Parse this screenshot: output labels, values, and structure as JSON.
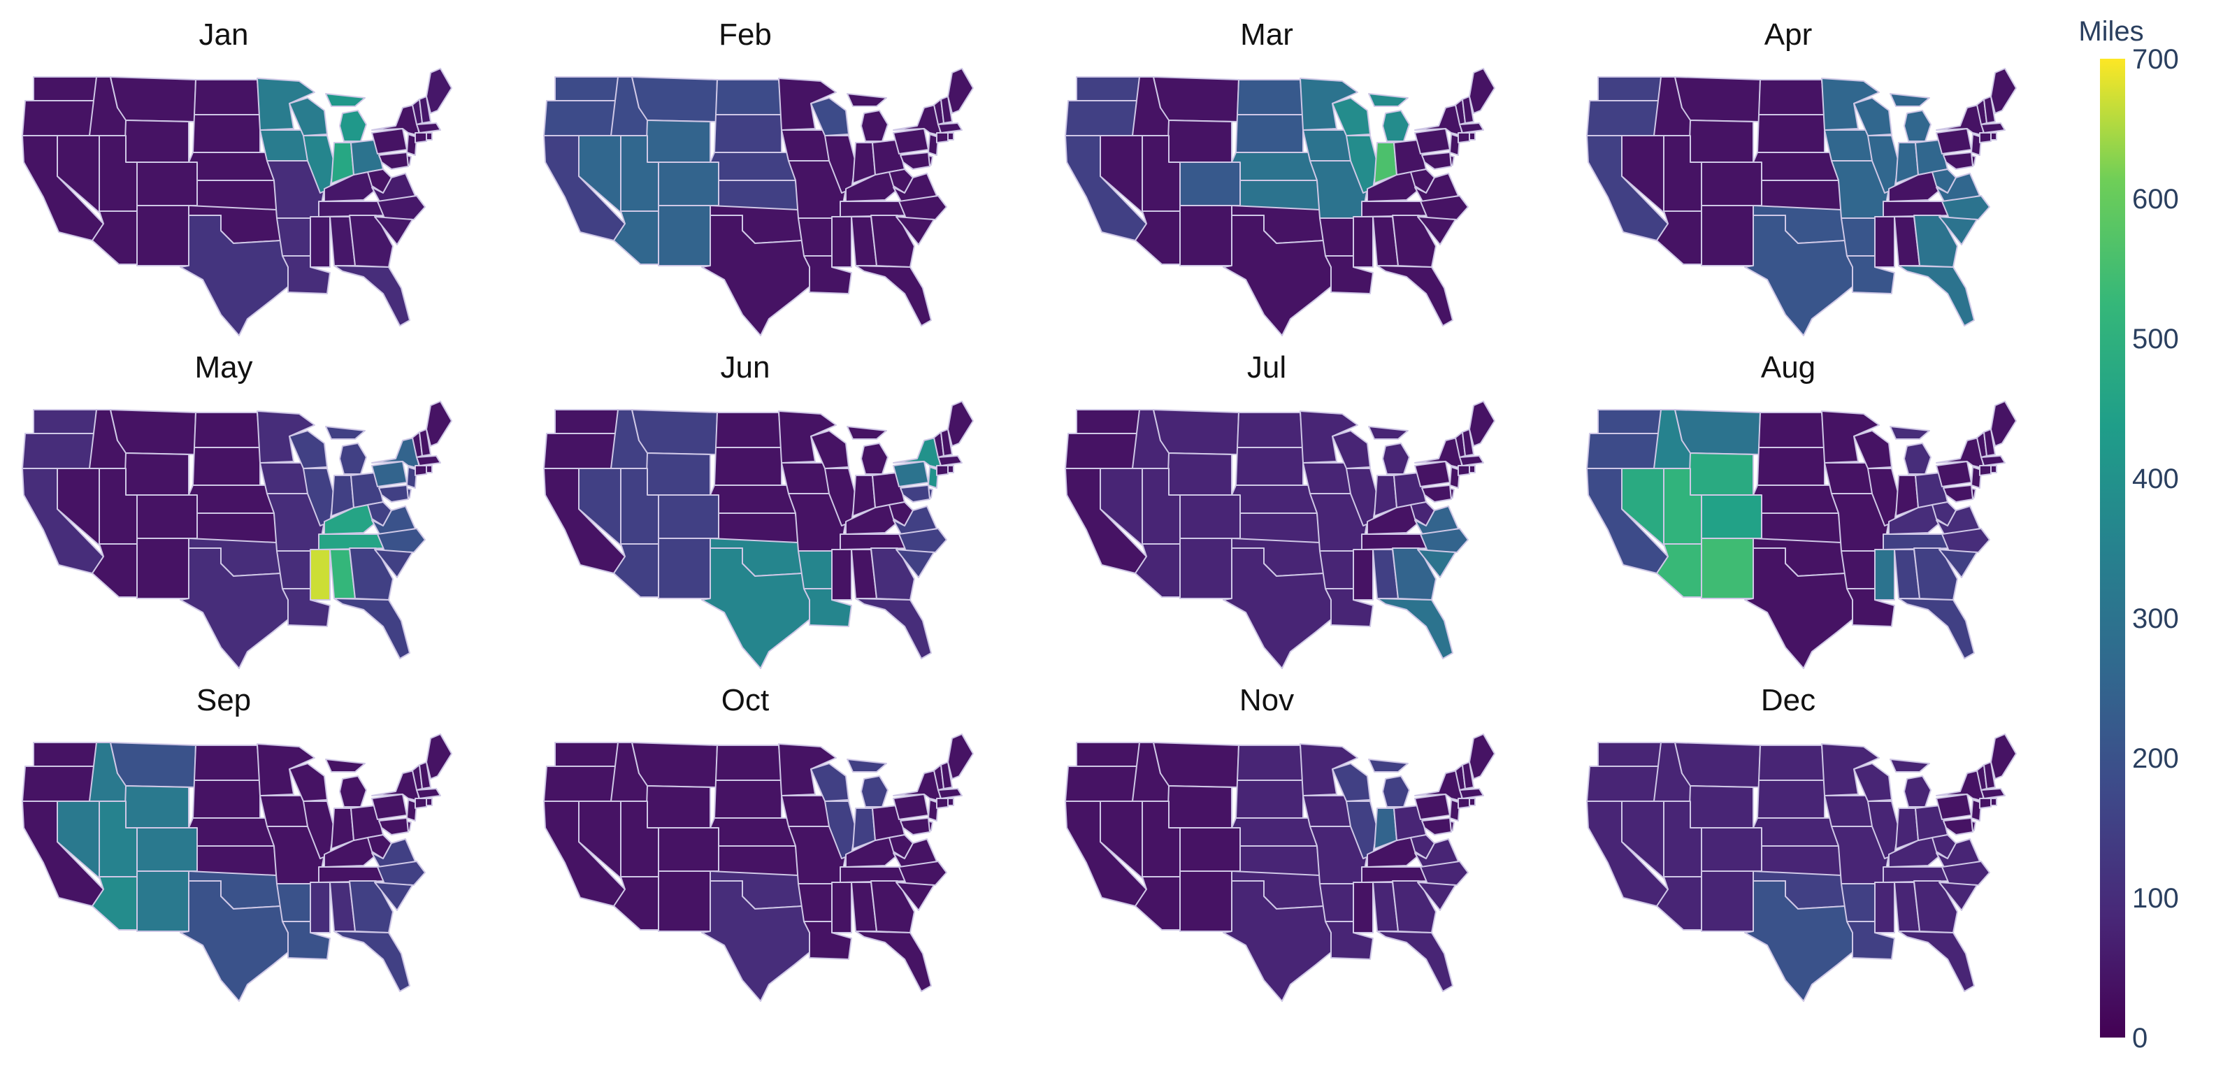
{
  "chart_data": {
    "type": "choropleth",
    "colorscale": "Viridis",
    "colorbar": {
      "title": "Miles",
      "min": 0,
      "max": 700,
      "ticks": [
        0,
        100,
        200,
        300,
        400,
        500,
        600,
        700
      ]
    },
    "region_order": [
      "WA",
      "OR",
      "CA",
      "ID",
      "NV",
      "MT",
      "WY",
      "UT",
      "AZ",
      "CO",
      "NM",
      "ND",
      "SD",
      "NE",
      "KS",
      "OK",
      "TX",
      "MN",
      "IA",
      "MO",
      "AR",
      "LA",
      "WI",
      "IL",
      "MI",
      "IN",
      "KY",
      "TN",
      "MS",
      "AL",
      "GA",
      "FL",
      "OH",
      "WV",
      "VA",
      "NC",
      "SC",
      "PA",
      "NY",
      "NJ",
      "DE",
      "MD",
      "VT",
      "NH",
      "ME",
      "MA",
      "CT",
      "RI"
    ],
    "months": [
      {
        "name": "Jan",
        "values": [
          40,
          40,
          40,
          40,
          40,
          40,
          40,
          40,
          40,
          40,
          40,
          40,
          40,
          40,
          40,
          40,
          120,
          330,
          330,
          100,
          100,
          100,
          330,
          360,
          420,
          470,
          50,
          50,
          50,
          50,
          50,
          100,
          300,
          40,
          60,
          50,
          50,
          40,
          40,
          40,
          40,
          40,
          50,
          50,
          50,
          40,
          40,
          40
        ]
      },
      {
        "name": "Feb",
        "values": [
          180,
          180,
          150,
          180,
          260,
          180,
          250,
          260,
          260,
          250,
          250,
          180,
          150,
          150,
          150,
          40,
          40,
          40,
          40,
          40,
          40,
          40,
          180,
          40,
          40,
          40,
          40,
          40,
          40,
          40,
          40,
          40,
          40,
          40,
          40,
          40,
          40,
          40,
          40,
          40,
          40,
          40,
          40,
          40,
          40,
          40,
          40,
          40
        ]
      },
      {
        "name": "Mar",
        "values": [
          150,
          150,
          150,
          40,
          40,
          40,
          40,
          40,
          40,
          220,
          40,
          220,
          220,
          300,
          300,
          40,
          40,
          300,
          300,
          300,
          40,
          40,
          380,
          380,
          380,
          560,
          40,
          40,
          40,
          40,
          40,
          40,
          40,
          40,
          40,
          40,
          40,
          40,
          40,
          40,
          40,
          40,
          40,
          40,
          40,
          40,
          40,
          40
        ]
      },
      {
        "name": "Apr",
        "values": [
          150,
          150,
          150,
          40,
          40,
          40,
          40,
          40,
          40,
          40,
          40,
          40,
          40,
          40,
          40,
          210,
          210,
          260,
          260,
          260,
          210,
          210,
          260,
          260,
          260,
          260,
          40,
          40,
          40,
          40,
          300,
          300,
          260,
          260,
          260,
          300,
          300,
          40,
          40,
          40,
          40,
          40,
          40,
          40,
          40,
          40,
          40,
          40
        ]
      },
      {
        "name": "May",
        "values": [
          100,
          100,
          100,
          40,
          40,
          40,
          40,
          40,
          40,
          40,
          40,
          40,
          40,
          40,
          40,
          100,
          100,
          100,
          100,
          100,
          100,
          100,
          150,
          150,
          150,
          150,
          460,
          460,
          670,
          520,
          150,
          150,
          150,
          150,
          200,
          200,
          150,
          250,
          250,
          150,
          150,
          150,
          40,
          40,
          40,
          40,
          40,
          40
        ]
      },
      {
        "name": "Jun",
        "values": [
          40,
          40,
          40,
          150,
          150,
          150,
          150,
          150,
          150,
          150,
          150,
          40,
          40,
          40,
          40,
          360,
          360,
          40,
          40,
          40,
          360,
          360,
          40,
          40,
          40,
          40,
          40,
          40,
          40,
          40,
          100,
          100,
          40,
          40,
          150,
          150,
          150,
          300,
          400,
          400,
          150,
          150,
          40,
          40,
          40,
          40,
          40,
          40
        ]
      },
      {
        "name": "Jul",
        "values": [
          40,
          40,
          40,
          80,
          80,
          80,
          80,
          80,
          80,
          80,
          80,
          80,
          80,
          80,
          80,
          80,
          80,
          80,
          80,
          80,
          80,
          80,
          80,
          80,
          80,
          80,
          40,
          40,
          40,
          150,
          250,
          300,
          80,
          80,
          250,
          250,
          300,
          40,
          40,
          40,
          40,
          40,
          40,
          40,
          40,
          40,
          40,
          40
        ]
      },
      {
        "name": "Aug",
        "values": [
          180,
          180,
          180,
          350,
          480,
          300,
          480,
          510,
          530,
          450,
          540,
          40,
          40,
          40,
          40,
          40,
          40,
          40,
          40,
          40,
          40,
          40,
          40,
          40,
          100,
          40,
          100,
          150,
          300,
          150,
          150,
          150,
          100,
          100,
          100,
          100,
          150,
          40,
          40,
          40,
          40,
          40,
          40,
          40,
          40,
          40,
          40,
          40
        ]
      },
      {
        "name": "Sep",
        "values": [
          40,
          40,
          40,
          320,
          320,
          200,
          320,
          350,
          380,
          320,
          320,
          40,
          40,
          40,
          40,
          200,
          200,
          40,
          40,
          40,
          200,
          200,
          40,
          40,
          40,
          40,
          40,
          40,
          100,
          100,
          150,
          150,
          40,
          40,
          150,
          150,
          150,
          40,
          40,
          40,
          40,
          40,
          40,
          40,
          40,
          40,
          40,
          40
        ]
      },
      {
        "name": "Oct",
        "values": [
          40,
          40,
          40,
          40,
          40,
          40,
          40,
          40,
          40,
          40,
          40,
          40,
          40,
          40,
          40,
          100,
          100,
          40,
          40,
          40,
          40,
          40,
          150,
          150,
          150,
          150,
          40,
          40,
          40,
          40,
          40,
          40,
          40,
          40,
          40,
          40,
          40,
          40,
          40,
          40,
          40,
          40,
          40,
          40,
          40,
          40,
          40,
          40
        ]
      },
      {
        "name": "Nov",
        "values": [
          40,
          40,
          40,
          40,
          40,
          40,
          40,
          40,
          40,
          40,
          40,
          80,
          80,
          80,
          80,
          80,
          80,
          80,
          80,
          80,
          80,
          80,
          150,
          150,
          150,
          250,
          40,
          40,
          40,
          80,
          80,
          80,
          80,
          80,
          80,
          80,
          80,
          40,
          40,
          40,
          40,
          40,
          40,
          40,
          40,
          40,
          40,
          40
        ]
      },
      {
        "name": "Dec",
        "values": [
          80,
          80,
          80,
          80,
          80,
          80,
          80,
          80,
          80,
          80,
          80,
          80,
          80,
          80,
          80,
          150,
          200,
          80,
          80,
          80,
          150,
          150,
          80,
          80,
          80,
          80,
          80,
          80,
          80,
          80,
          80,
          80,
          80,
          80,
          80,
          80,
          80,
          40,
          40,
          40,
          40,
          40,
          40,
          40,
          40,
          40,
          40,
          40
        ]
      }
    ]
  }
}
